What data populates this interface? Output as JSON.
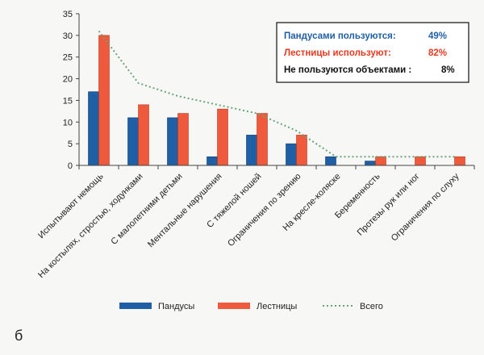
{
  "chart_data": {
    "type": "bar",
    "ylim": [
      0,
      35
    ],
    "yticks": [
      0,
      5,
      10,
      15,
      20,
      25,
      30,
      35
    ],
    "grid": false,
    "legend_position": "bottom",
    "categories": [
      "Испытывают немощь",
      "На костылях, стростью, ходунками",
      "С малолетними детьми",
      "Ментальные нарушения",
      "С тяжелой ношей",
      "Ограничения по зрению",
      "На кресле-коляске",
      "Беременность",
      "Протезы рук или ног",
      "Ограничения по слуху"
    ],
    "series": [
      {
        "name": "Пандусы",
        "type": "bar",
        "color": "#1f5fa6",
        "values": [
          17,
          11,
          11,
          2,
          7,
          5,
          2,
          1,
          0,
          0
        ]
      },
      {
        "name": "Лестницы",
        "type": "bar",
        "color": "#ef5a3c",
        "values": [
          30,
          14,
          12,
          13,
          12,
          7,
          0,
          2,
          2,
          2
        ]
      },
      {
        "name": "Всего",
        "type": "line",
        "style": "dotted",
        "color": "#6aa37a",
        "values": [
          31,
          19,
          16,
          14,
          12,
          8,
          2,
          2,
          2,
          2
        ]
      }
    ],
    "annotations": [
      {
        "text": "Пандусами пользуются:",
        "value": "49%",
        "color": "#1f5fa6"
      },
      {
        "text": "Лестницы используют:",
        "value": "82%",
        "color": "#e5391f"
      },
      {
        "text": "Не пользуются объектами :",
        "value": "8%",
        "color": "#111111"
      }
    ]
  },
  "panel_label": "б"
}
